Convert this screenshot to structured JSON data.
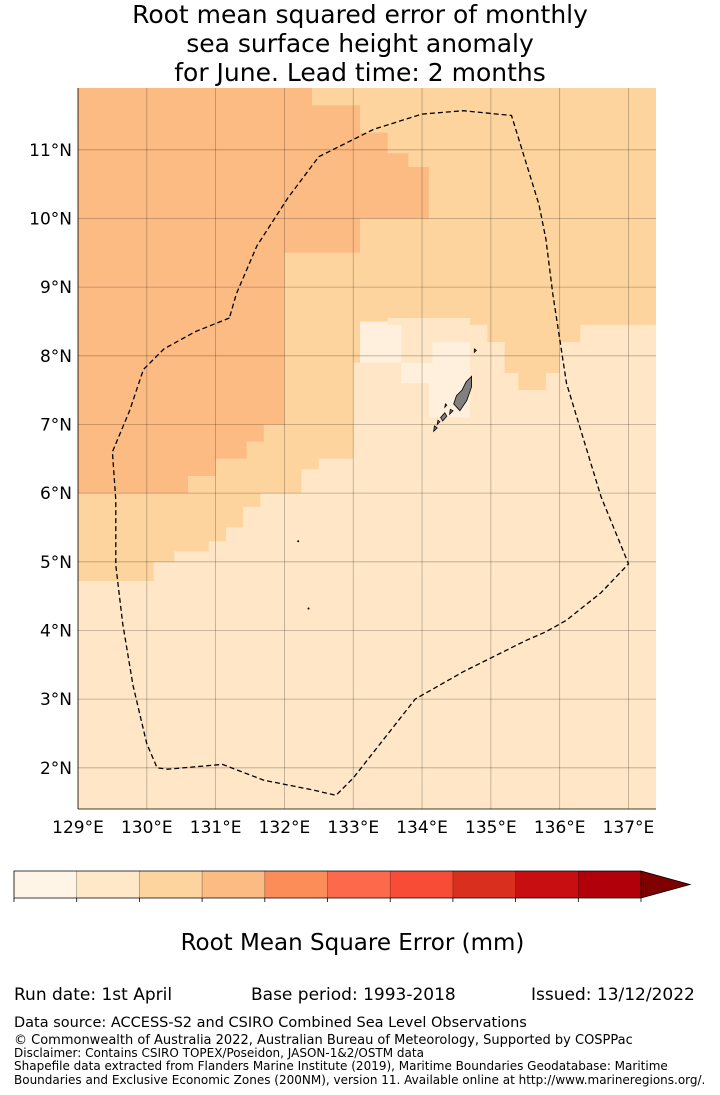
{
  "title": {
    "line1": "Root mean squared error of monthly",
    "line2": "sea surface height anomaly",
    "line3": "for June. Lead time: 2 months"
  },
  "map": {
    "lon_range": [
      129.0,
      137.4
    ],
    "lat_range": [
      1.4,
      11.9
    ],
    "x_ticks": [
      {
        "value": 129,
        "label": "129°E"
      },
      {
        "value": 130,
        "label": "130°E"
      },
      {
        "value": 131,
        "label": "131°E"
      },
      {
        "value": 132,
        "label": "132°E"
      },
      {
        "value": 133,
        "label": "133°E"
      },
      {
        "value": 134,
        "label": "134°E"
      },
      {
        "value": 135,
        "label": "135°E"
      },
      {
        "value": 136,
        "label": "136°E"
      },
      {
        "value": 137,
        "label": "137°E"
      }
    ],
    "y_ticks": [
      {
        "value": 2,
        "label": "2°N"
      },
      {
        "value": 3,
        "label": "3°N"
      },
      {
        "value": 4,
        "label": "4°N"
      },
      {
        "value": 5,
        "label": "5°N"
      },
      {
        "value": 6,
        "label": "6°N"
      },
      {
        "value": 7,
        "label": "7°N"
      },
      {
        "value": 8,
        "label": "8°N"
      },
      {
        "value": 9,
        "label": "9°N"
      },
      {
        "value": 10,
        "label": "10°N"
      },
      {
        "value": 11,
        "label": "11°N"
      }
    ],
    "colors": {
      "c0": "#fef0dc",
      "c1": "#fee6c6",
      "c2": "#fdd49e",
      "c3": "#fdbb84",
      "land": "#808080"
    },
    "background_class": "c1",
    "regions": [
      {
        "class": "c2",
        "polygon": [
          [
            129,
            7.12
          ],
          [
            129,
            11.9
          ],
          [
            137.4,
            11.9
          ],
          [
            137.4,
            8.45
          ],
          [
            136.3,
            8.45
          ],
          [
            136.3,
            8.2
          ],
          [
            136,
            8.2
          ],
          [
            136,
            7.75
          ],
          [
            135.8,
            7.75
          ],
          [
            135.8,
            7.5
          ],
          [
            135.4,
            7.5
          ],
          [
            135.4,
            7.75
          ],
          [
            135.2,
            7.75
          ],
          [
            135.2,
            8.2
          ],
          [
            134.95,
            8.2
          ],
          [
            134.95,
            8.45
          ],
          [
            134.7,
            8.45
          ],
          [
            134.7,
            8.55
          ],
          [
            133.5,
            8.55
          ],
          [
            133.5,
            8.5
          ],
          [
            133.1,
            8.5
          ],
          [
            133.1,
            7.9
          ],
          [
            133,
            7.9
          ],
          [
            133,
            6.5
          ],
          [
            132.5,
            6.5
          ],
          [
            132.5,
            6.35
          ],
          [
            132.25,
            6.35
          ],
          [
            132.25,
            6
          ],
          [
            131.65,
            6
          ],
          [
            131.65,
            5.8
          ],
          [
            131.4,
            5.8
          ],
          [
            131.4,
            5.5
          ],
          [
            131.15,
            5.5
          ],
          [
            131.15,
            5.3
          ],
          [
            130.9,
            5.3
          ],
          [
            130.9,
            5.15
          ],
          [
            130.4,
            5.15
          ],
          [
            130.4,
            5
          ],
          [
            130.1,
            5
          ],
          [
            130.1,
            4.72
          ],
          [
            129,
            4.72
          ]
        ]
      },
      {
        "class": "c3",
        "polygon": [
          [
            129,
            6
          ],
          [
            129,
            11.9
          ],
          [
            132.4,
            11.9
          ],
          [
            132.4,
            11.65
          ],
          [
            133.1,
            11.65
          ],
          [
            133.1,
            11.25
          ],
          [
            133.5,
            11.25
          ],
          [
            133.5,
            10.95
          ],
          [
            133.8,
            10.95
          ],
          [
            133.8,
            10.75
          ],
          [
            134.1,
            10.75
          ],
          [
            134.1,
            10
          ],
          [
            133.1,
            10
          ],
          [
            133.1,
            9.5
          ],
          [
            132,
            9.5
          ],
          [
            132,
            7
          ],
          [
            131.7,
            7
          ],
          [
            131.7,
            6.75
          ],
          [
            131.45,
            6.75
          ],
          [
            131.45,
            6.5
          ],
          [
            131,
            6.5
          ],
          [
            131,
            6.25
          ],
          [
            130.6,
            6.25
          ],
          [
            130.6,
            6
          ],
          [
            129,
            6
          ]
        ]
      },
      {
        "class": "c2",
        "polygon": [
          [
            129,
            6
          ],
          [
            130.6,
            6
          ],
          [
            130.6,
            5.73
          ],
          [
            129.35,
            5.73
          ],
          [
            129.35,
            6
          ]
        ]
      },
      {
        "class": "c0",
        "polygon": [
          [
            133.1,
            8.5
          ],
          [
            133.1,
            7.9
          ],
          [
            133.7,
            7.9
          ],
          [
            133.7,
            8.45
          ],
          [
            133.5,
            8.45
          ],
          [
            133.5,
            8.5
          ]
        ]
      },
      {
        "class": "c0",
        "polygon": [
          [
            133.7,
            7.9
          ],
          [
            134.15,
            7.9
          ],
          [
            134.15,
            8.2
          ],
          [
            134.7,
            8.2
          ],
          [
            134.7,
            7.1
          ],
          [
            134.1,
            7.1
          ],
          [
            134.1,
            7.6
          ],
          [
            133.7,
            7.6
          ]
        ]
      }
    ],
    "eez_boundary": [
      [
        131.2,
        8.55
      ],
      [
        130.7,
        8.35
      ],
      [
        130.25,
        8.1
      ],
      [
        129.95,
        7.8
      ],
      [
        129.75,
        7.2
      ],
      [
        129.5,
        6.6
      ],
      [
        129.55,
        5.9
      ],
      [
        129.55,
        4.95
      ],
      [
        129.65,
        4.1
      ],
      [
        129.8,
        3.2
      ],
      [
        130,
        2.35
      ],
      [
        130.15,
        2.0
      ],
      [
        130.3,
        1.98
      ],
      [
        131.1,
        2.05
      ],
      [
        131.7,
        1.82
      ],
      [
        132.4,
        1.68
      ],
      [
        132.75,
        1.6
      ],
      [
        133.0,
        1.85
      ],
      [
        133.9,
        3.0
      ],
      [
        134.6,
        3.4
      ],
      [
        135.5,
        3.85
      ],
      [
        135.8,
        3.98
      ],
      [
        136.1,
        4.15
      ],
      [
        136.6,
        4.55
      ],
      [
        137.0,
        4.97
      ],
      [
        136.6,
        5.95
      ],
      [
        136.1,
        7.6
      ],
      [
        135.9,
        8.9
      ],
      [
        135.8,
        9.7
      ],
      [
        135.7,
        10.2
      ],
      [
        135.3,
        11.5
      ],
      [
        134.6,
        11.57
      ],
      [
        134.0,
        11.52
      ],
      [
        133.3,
        11.3
      ],
      [
        132.5,
        10.9
      ],
      [
        132.05,
        10.3
      ],
      [
        131.6,
        9.6
      ],
      [
        131.3,
        8.9
      ],
      [
        131.2,
        8.55
      ]
    ],
    "islands": [
      [
        [
          134.55,
          7.2
        ],
        [
          134.65,
          7.35
        ],
        [
          134.72,
          7.55
        ],
        [
          134.72,
          7.7
        ],
        [
          134.64,
          7.62
        ],
        [
          134.58,
          7.5
        ],
        [
          134.5,
          7.42
        ],
        [
          134.46,
          7.3
        ]
      ],
      [
        [
          134.3,
          7.05
        ],
        [
          134.36,
          7.12
        ],
        [
          134.33,
          7.17
        ],
        [
          134.27,
          7.1
        ]
      ],
      [
        [
          134.17,
          6.9
        ],
        [
          134.22,
          6.95
        ],
        [
          134.18,
          6.98
        ]
      ],
      [
        [
          134.4,
          7.15
        ],
        [
          134.45,
          7.2
        ],
        [
          134.41,
          7.22
        ]
      ],
      [
        [
          134.22,
          7.0
        ],
        [
          134.26,
          7.04
        ],
        [
          134.23,
          7.06
        ]
      ],
      [
        [
          134.33,
          7.25
        ],
        [
          134.36,
          7.28
        ],
        [
          134.34,
          7.3
        ]
      ],
      [
        [
          134.76,
          8.05
        ],
        [
          134.79,
          8.08
        ],
        [
          134.76,
          8.1
        ]
      ]
    ],
    "specks": [
      [
        132.2,
        5.3
      ],
      [
        132.35,
        4.32
      ]
    ]
  },
  "colorbar": {
    "levels": [
      "0",
      "0.03",
      "0.06",
      "0.09",
      "0.12",
      "0.15",
      "0.18",
      "0.21",
      "0.24",
      "0.27",
      "0.3"
    ],
    "colors": [
      "#fff5e6",
      "#fee8c8",
      "#fdd49e",
      "#fdbb84",
      "#fc8d59",
      "#fc6a4b",
      "#f94c36",
      "#d92f1e",
      "#c90e11",
      "#b10009"
    ],
    "extend_color": "#7f0000",
    "label": "Root Mean Square Error (mm)"
  },
  "footer": {
    "run_date": "Run date: 1st April",
    "base_period": "Base period: 1993-2018",
    "issued": "Issued: 13/12/2022",
    "data_source": "Data source: ACCESS-S2 and CSIRO Combined Sea Level Observations",
    "copyright": "© Commonwealth of Australia 2022, Australian Bureau of Meteorology, Supported by COSPPac",
    "disclaimer": "Disclaimer: Contains CSIRO TOPEX/Poseidon, JASON-1&2/OSTM data",
    "shapefile_1": "Shapefile data extracted from Flanders Marine Institute (2019), Maritime Boundaries Geodatabase: Maritime",
    "shapefile_2": "Boundaries and Exclusive Economic Zones (200NM), version 11. Available online at http://www.marineregions.org/."
  }
}
